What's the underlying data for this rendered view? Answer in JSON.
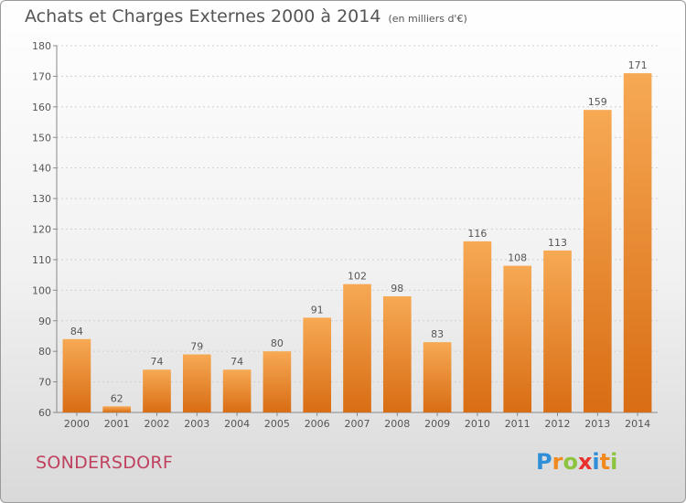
{
  "title": "Achats et Charges Externes 2000 à 2014",
  "subtitle": "(en milliers d'€)",
  "commune": "SONDERSDORF",
  "logo": {
    "letters": [
      "P",
      "r",
      "o",
      "x",
      "i",
      "t",
      "i"
    ],
    "colors": [
      "#2f8fd8",
      "#f08a1e",
      "#8dc43f",
      "#e8312f",
      "#2f8fd8",
      "#f08a1e",
      "#8dc43f"
    ]
  },
  "colors": {
    "bar_top": "#f7a954",
    "bar_bottom": "#d86d14",
    "text": "#555555",
    "commune": "#c0415f"
  },
  "chart_data": {
    "type": "bar",
    "categories": [
      "2000",
      "2001",
      "2002",
      "2003",
      "2004",
      "2005",
      "2006",
      "2007",
      "2008",
      "2009",
      "2010",
      "2011",
      "2012",
      "2013",
      "2014"
    ],
    "values": [
      84,
      62,
      74,
      79,
      74,
      80,
      91,
      102,
      98,
      83,
      116,
      108,
      113,
      159,
      171
    ],
    "ylim": [
      60,
      180
    ],
    "yticks": [
      60,
      70,
      80,
      90,
      100,
      110,
      120,
      130,
      140,
      150,
      160,
      170,
      180
    ],
    "grid": true
  }
}
